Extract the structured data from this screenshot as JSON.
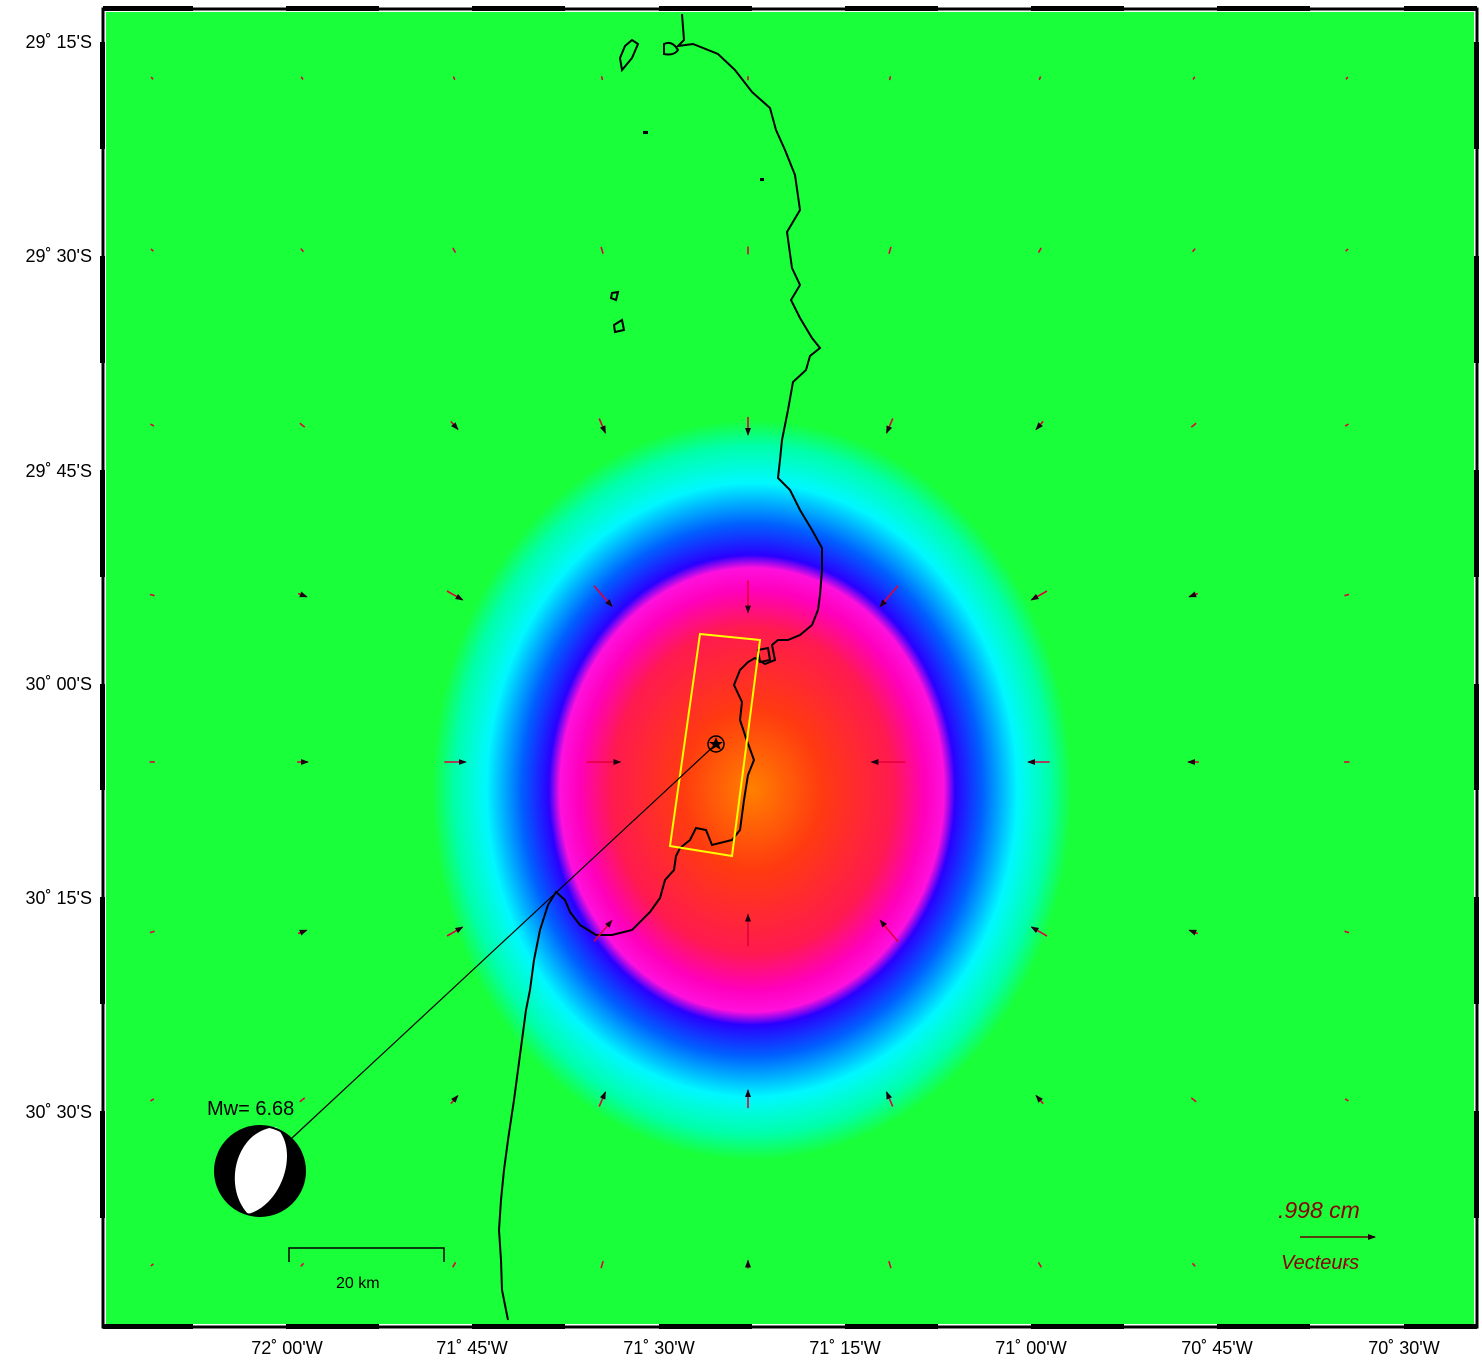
{
  "map": {
    "lat_labels": [
      "29˚ 15'S",
      "29˚ 30'S",
      "29˚ 45'S",
      "30˚ 00'S",
      "30˚ 15'S",
      "30˚ 30'S"
    ],
    "lon_labels": [
      "72˚ 00'W",
      "71˚ 45'W",
      "71˚ 30'W",
      "71˚ 15'W",
      "71˚ 00'W",
      "70˚ 45'W",
      "70˚ 30'W"
    ],
    "colors": {
      "background": "#19ff00",
      "ring_cyan": "#00ffff",
      "ring_blue": "#0000ff",
      "core_magenta": "#ff00cc",
      "core_red": "#ff1a1a",
      "core_orange": "#ff7a00",
      "coastline": "#000000",
      "fault_outline": "#ffff00",
      "vectors": "#e0003c"
    },
    "focal_mechanism": {
      "label": "Mw= 6.68",
      "icon": "beachball-icon"
    },
    "scale_bar": {
      "label": "20 km"
    },
    "vector_legend": {
      "value_label": ".998  cm",
      "name_label": "Vecteurs",
      "color": "#8b0000"
    },
    "epicenter": {
      "icon": "star-icon"
    }
  }
}
